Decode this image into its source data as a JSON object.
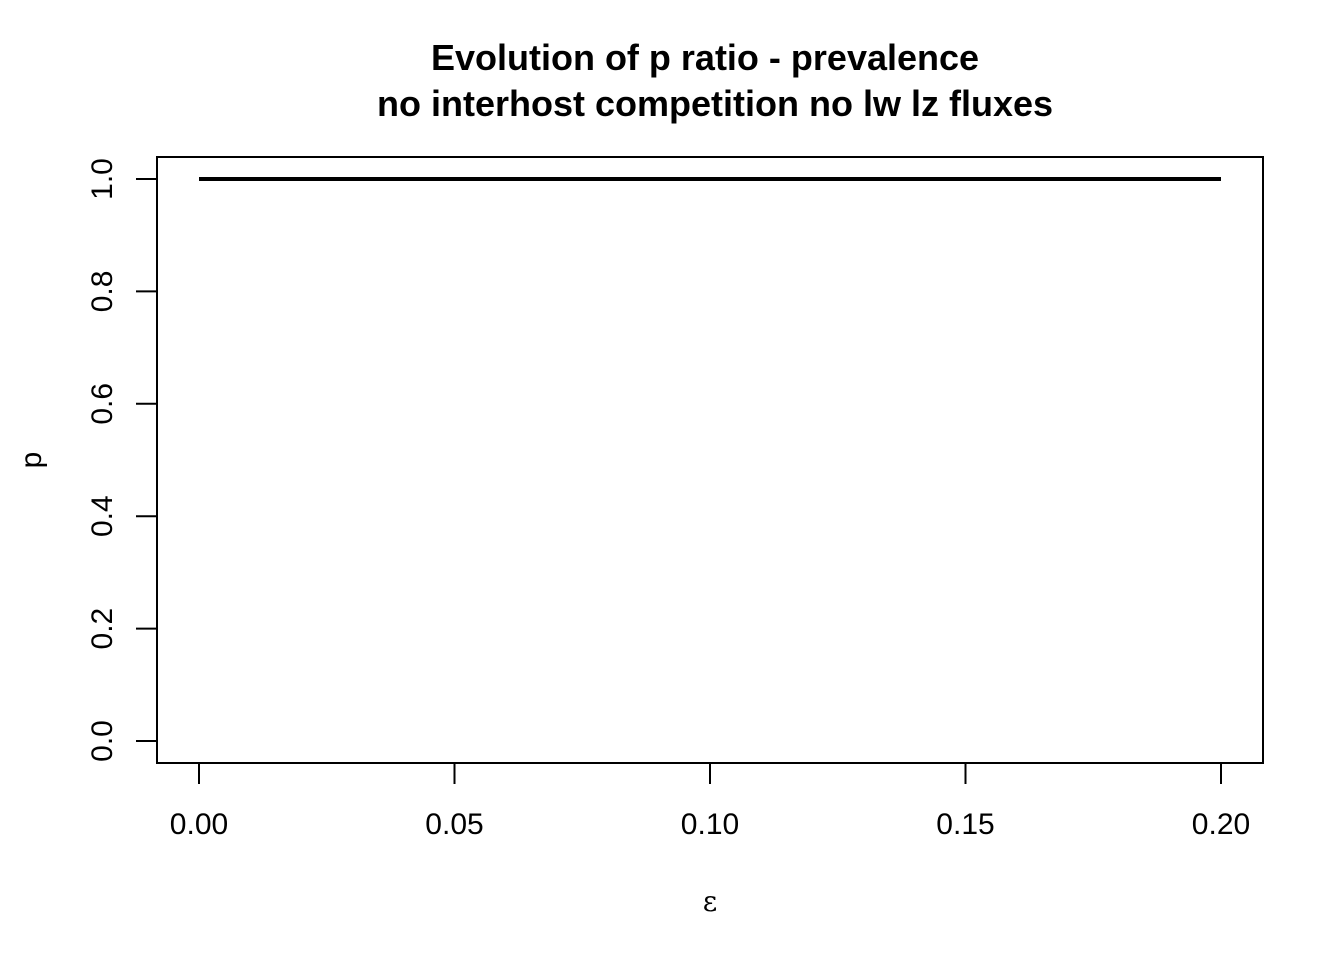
{
  "chart_data": {
    "type": "line",
    "title": "Evolution of p ratio - prevalence",
    "subtitle": "no interhost competition no lw lz fluxes",
    "xlabel": "ε",
    "ylabel": "p",
    "xlim": [
      0.0,
      0.2
    ],
    "ylim": [
      0.0,
      1.0
    ],
    "x_ticks": [
      "0.00",
      "0.05",
      "0.10",
      "0.15",
      "0.20"
    ],
    "y_ticks": [
      "0.0",
      "0.2",
      "0.4",
      "0.6",
      "0.8",
      "1.0"
    ],
    "grid": false,
    "legend": "none",
    "series": [
      {
        "x": [
          0.0,
          0.2
        ],
        "y": [
          1.0,
          1.0
        ],
        "color": "#000000"
      }
    ]
  }
}
